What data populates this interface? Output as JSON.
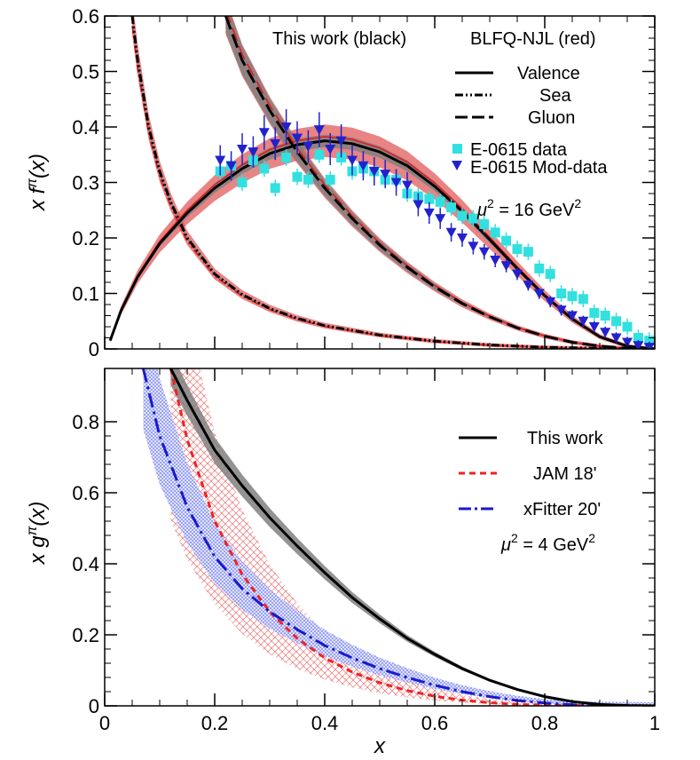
{
  "chart_data": [
    {
      "type": "line",
      "panel": "top",
      "ylabel_main": "x f",
      "ylabel_sup": "π",
      "ylabel_tail": "(x)",
      "xlim": [
        0,
        1
      ],
      "ylim": [
        0,
        0.6
      ],
      "yticks": [
        0,
        0.1,
        0.2,
        0.3,
        0.4,
        0.5,
        0.6
      ],
      "ytick_labels": [
        "0",
        "0.1",
        "0.2",
        "0.3",
        "0.4",
        "0.5",
        "0.6"
      ],
      "legend_header_left": "This work (black)",
      "legend_header_right": "BLFQ-NJL (red)",
      "legend_lines": [
        "Valence",
        "Sea",
        "Gluon"
      ],
      "legend_markers": [
        "E-0615 data",
        "E-0615 Mod-data"
      ],
      "scale_main": "μ",
      "scale_tail": " = 16 GeV",
      "scale_sup": "2",
      "colors": {
        "this_work": "#000000",
        "blfq": "#e31a1c",
        "band_this_work": "#808080",
        "band_blfq": "#e05050",
        "e615": "#33e0e0",
        "e615_mod": "#2222cc"
      },
      "series": [
        {
          "name": "Valence",
          "style": "solid",
          "x": [
            0.01,
            0.03,
            0.06,
            0.1,
            0.15,
            0.2,
            0.25,
            0.3,
            0.35,
            0.4,
            0.45,
            0.5,
            0.55,
            0.6,
            0.65,
            0.7,
            0.75,
            0.8,
            0.85,
            0.9,
            0.95,
            1.0
          ],
          "y": [
            0.015,
            0.07,
            0.13,
            0.19,
            0.245,
            0.29,
            0.325,
            0.352,
            0.368,
            0.375,
            0.37,
            0.355,
            0.33,
            0.293,
            0.248,
            0.197,
            0.145,
            0.096,
            0.054,
            0.022,
            0.005,
            0.0
          ]
        },
        {
          "name": "Sea",
          "style": "dash-dot-dot",
          "x": [
            0.05,
            0.06,
            0.08,
            0.1,
            0.12,
            0.15,
            0.2,
            0.25,
            0.3,
            0.35,
            0.4,
            0.5,
            0.6,
            0.7,
            0.8,
            0.9,
            1.0
          ],
          "y": [
            0.6,
            0.52,
            0.4,
            0.32,
            0.265,
            0.2,
            0.135,
            0.098,
            0.073,
            0.055,
            0.042,
            0.025,
            0.014,
            0.007,
            0.003,
            0.001,
            0.0
          ]
        },
        {
          "name": "Gluon",
          "style": "long-dash",
          "x": [
            0.22,
            0.25,
            0.3,
            0.35,
            0.4,
            0.45,
            0.5,
            0.55,
            0.6,
            0.65,
            0.7,
            0.75,
            0.8,
            0.85,
            0.9,
            0.95,
            1.0
          ],
          "y": [
            0.6,
            0.52,
            0.43,
            0.355,
            0.29,
            0.235,
            0.187,
            0.147,
            0.112,
            0.082,
            0.058,
            0.038,
            0.023,
            0.012,
            0.005,
            0.001,
            0.0
          ]
        }
      ],
      "data_points": [
        {
          "name": "E-0615 data",
          "x": [
            0.21,
            0.23,
            0.25,
            0.27,
            0.29,
            0.31,
            0.33,
            0.35,
            0.37,
            0.39,
            0.41,
            0.43,
            0.45,
            0.47,
            0.49,
            0.51,
            0.53,
            0.55,
            0.57,
            0.59,
            0.61,
            0.63,
            0.65,
            0.67,
            0.69,
            0.71,
            0.73,
            0.75,
            0.77,
            0.79,
            0.81,
            0.83,
            0.85,
            0.87,
            0.89,
            0.91,
            0.93,
            0.95,
            0.97,
            0.99
          ],
          "y": [
            0.32,
            0.33,
            0.3,
            0.34,
            0.325,
            0.29,
            0.345,
            0.31,
            0.305,
            0.35,
            0.305,
            0.345,
            0.32,
            0.325,
            0.32,
            0.305,
            0.305,
            0.28,
            0.275,
            0.27,
            0.265,
            0.255,
            0.24,
            0.235,
            0.225,
            0.21,
            0.195,
            0.18,
            0.175,
            0.145,
            0.135,
            0.1,
            0.095,
            0.09,
            0.065,
            0.06,
            0.05,
            0.04,
            0.02,
            0.015
          ]
        },
        {
          "name": "E-0615 Mod-data",
          "x": [
            0.21,
            0.23,
            0.25,
            0.27,
            0.29,
            0.31,
            0.33,
            0.35,
            0.37,
            0.39,
            0.41,
            0.43,
            0.45,
            0.47,
            0.49,
            0.51,
            0.53,
            0.55,
            0.57,
            0.59,
            0.61,
            0.63,
            0.65,
            0.67,
            0.69,
            0.71,
            0.73,
            0.75,
            0.77,
            0.79,
            0.81,
            0.83,
            0.85,
            0.87,
            0.89,
            0.91,
            0.93,
            0.95,
            0.97,
            0.99
          ],
          "y": [
            0.34,
            0.33,
            0.36,
            0.355,
            0.39,
            0.37,
            0.4,
            0.38,
            0.365,
            0.395,
            0.36,
            0.375,
            0.34,
            0.33,
            0.32,
            0.315,
            0.3,
            0.295,
            0.26,
            0.245,
            0.235,
            0.21,
            0.2,
            0.185,
            0.175,
            0.16,
            0.15,
            0.135,
            0.115,
            0.1,
            0.085,
            0.07,
            0.06,
            0.05,
            0.04,
            0.03,
            0.02,
            0.012,
            0.006,
            0.003
          ]
        }
      ]
    },
    {
      "type": "line",
      "panel": "bottom",
      "xlabel": "x",
      "ylabel_main": "x g",
      "ylabel_sup": "π",
      "ylabel_tail": "(x)",
      "xlim": [
        0,
        1
      ],
      "ylim": [
        0,
        0.95
      ],
      "xticks": [
        0,
        0.2,
        0.4,
        0.6,
        0.8,
        1
      ],
      "xtick_labels": [
        "0",
        "0.2",
        "0.4",
        "0.6",
        "0.8",
        "1"
      ],
      "yticks": [
        0,
        0.2,
        0.4,
        0.6,
        0.8
      ],
      "ytick_labels": [
        "0",
        "0.2",
        "0.4",
        "0.6",
        "0.8"
      ],
      "legend": [
        "This work",
        "JAM 18'",
        "xFitter 20'"
      ],
      "scale_main": "μ",
      "scale_tail": " = 4 GeV",
      "scale_sup": "2",
      "colors": {
        "this_work": "#000000",
        "jam": "#ee2222",
        "xfitter": "#1a1acc",
        "band_this_work": "#808080"
      },
      "series": [
        {
          "name": "This work",
          "style": "solid",
          "x": [
            0.12,
            0.15,
            0.2,
            0.25,
            0.3,
            0.35,
            0.4,
            0.45,
            0.5,
            0.55,
            0.6,
            0.65,
            0.7,
            0.75,
            0.8,
            0.85,
            0.9,
            0.95,
            1.0
          ],
          "y": [
            0.95,
            0.86,
            0.72,
            0.62,
            0.53,
            0.45,
            0.375,
            0.305,
            0.245,
            0.19,
            0.145,
            0.105,
            0.072,
            0.046,
            0.026,
            0.012,
            0.004,
            0.001,
            0.0
          ]
        },
        {
          "name": "JAM 18'",
          "style": "short-dash",
          "x": [
            0.12,
            0.15,
            0.2,
            0.25,
            0.3,
            0.35,
            0.4,
            0.45,
            0.5,
            0.55,
            0.6,
            0.65,
            0.7,
            0.75,
            0.8,
            0.85,
            0.9,
            1.0
          ],
          "y": [
            0.95,
            0.75,
            0.52,
            0.37,
            0.265,
            0.19,
            0.135,
            0.095,
            0.065,
            0.043,
            0.027,
            0.016,
            0.009,
            0.004,
            0.002,
            0.001,
            0.0,
            0.0
          ]
        },
        {
          "name": "xFitter 20'",
          "style": "long-dash-dot",
          "x": [
            0.07,
            0.1,
            0.15,
            0.2,
            0.25,
            0.3,
            0.35,
            0.4,
            0.45,
            0.5,
            0.55,
            0.6,
            0.65,
            0.7,
            0.75,
            0.8,
            0.85,
            0.9,
            1.0
          ],
          "y": [
            0.95,
            0.76,
            0.56,
            0.42,
            0.33,
            0.265,
            0.215,
            0.17,
            0.135,
            0.105,
            0.08,
            0.058,
            0.04,
            0.026,
            0.015,
            0.008,
            0.003,
            0.001,
            0.0
          ]
        }
      ]
    }
  ]
}
